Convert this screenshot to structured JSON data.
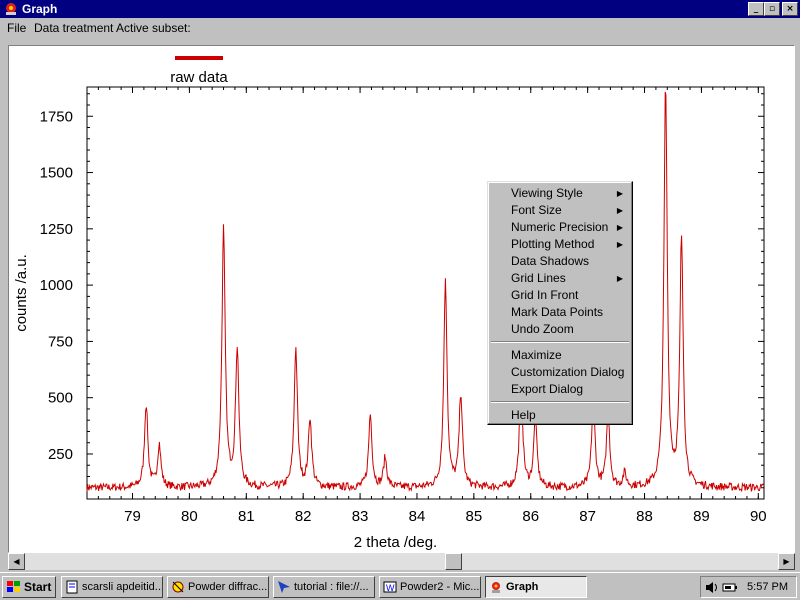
{
  "window": {
    "title": "Graph",
    "controls": {
      "minimize": "_",
      "maximize": "▫",
      "close": "×"
    }
  },
  "menubar": {
    "items": [
      "File",
      "Data treatment",
      "Active subset:"
    ]
  },
  "chart_data": {
    "type": "line",
    "title": "",
    "xlabel": "2 theta /deg.",
    "ylabel": "counts /a.u.",
    "xlim": [
      78.2,
      90.1
    ],
    "ylim": [
      50,
      1880
    ],
    "xticks": [
      79,
      80,
      81,
      82,
      83,
      84,
      85,
      86,
      87,
      88,
      89,
      90
    ],
    "yticks": [
      250,
      500,
      750,
      1000,
      1250,
      1500,
      1750
    ],
    "grid": false,
    "legend_position": "top-left",
    "series": [
      {
        "name": "raw data",
        "color": "#cc0000",
        "baseline": 100,
        "peaks": [
          {
            "x": 79.24,
            "y": 470
          },
          {
            "x": 79.47,
            "y": 290
          },
          {
            "x": 80.6,
            "y": 1245
          },
          {
            "x": 80.84,
            "y": 710
          },
          {
            "x": 81.87,
            "y": 715
          },
          {
            "x": 82.12,
            "y": 405
          },
          {
            "x": 83.18,
            "y": 425
          },
          {
            "x": 83.44,
            "y": 230
          },
          {
            "x": 84.5,
            "y": 1010
          },
          {
            "x": 84.77,
            "y": 510
          },
          {
            "x": 85.83,
            "y": 560
          },
          {
            "x": 86.08,
            "y": 400
          },
          {
            "x": 87.1,
            "y": 490
          },
          {
            "x": 87.36,
            "y": 430
          },
          {
            "x": 87.65,
            "y": 160
          },
          {
            "x": 88.37,
            "y": 1880
          },
          {
            "x": 88.65,
            "y": 1200
          }
        ]
      }
    ]
  },
  "context_menu": {
    "items": [
      {
        "label": "Viewing Style",
        "submenu": true
      },
      {
        "label": "Font Size",
        "submenu": true
      },
      {
        "label": "Numeric Precision",
        "submenu": true
      },
      {
        "label": "Plotting Method",
        "submenu": true
      },
      {
        "label": "Data Shadows",
        "submenu": false
      },
      {
        "label": "Grid Lines",
        "submenu": true
      },
      {
        "label": "Grid In Front",
        "submenu": false
      },
      {
        "label": "Mark Data Points",
        "submenu": false
      },
      {
        "label": "Undo Zoom",
        "submenu": false
      },
      {
        "label": "Maximize",
        "submenu": false
      },
      {
        "label": "Customization Dialog",
        "submenu": false
      },
      {
        "label": "Export Dialog",
        "submenu": false
      },
      {
        "label": "Help",
        "submenu": false
      }
    ],
    "arrow": "▶"
  },
  "scrollbar": {
    "left": "◀",
    "right": "▶"
  },
  "taskbar": {
    "start": "Start",
    "tasks": [
      "scarsli apdeitid...",
      "Powder diffrac...",
      "tutorial : file://...",
      "Powder2 - Mic...",
      "Graph"
    ],
    "clock": "5:57 PM"
  }
}
